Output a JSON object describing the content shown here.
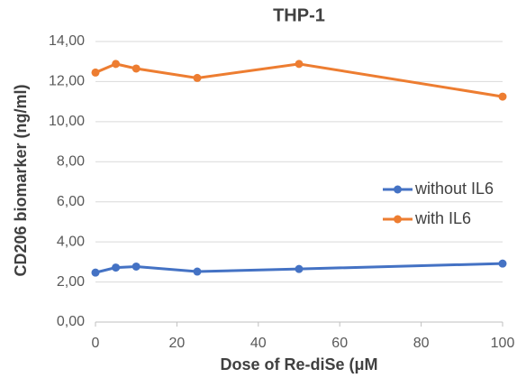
{
  "chart_data": {
    "type": "line",
    "title": "THP-1",
    "x_label": "Dose of Re-diSe (μM",
    "y_label": "CD206  biomarker (ng/ml)",
    "x": [
      0,
      5,
      10,
      25,
      50,
      100
    ],
    "series": [
      {
        "name": "without IL6",
        "color": "#4472c4",
        "values": [
          2.47,
          2.72,
          2.77,
          2.52,
          2.65,
          2.92
        ]
      },
      {
        "name": "with IL6",
        "color": "#ed7d31",
        "values": [
          12.45,
          12.88,
          12.65,
          12.18,
          12.88,
          11.25
        ]
      }
    ],
    "xlim": [
      0,
      100
    ],
    "xticks": [
      0,
      20,
      40,
      60,
      80,
      100
    ],
    "ylim": [
      0,
      14
    ],
    "yticks": [
      {
        "value": 0,
        "label": "0,00"
      },
      {
        "value": 2,
        "label": "2,00"
      },
      {
        "value": 4,
        "label": "4,00"
      },
      {
        "value": 6,
        "label": "6,00"
      },
      {
        "value": 8,
        "label": "8,00"
      },
      {
        "value": 10,
        "label": "10,00"
      },
      {
        "value": 12,
        "label": "12,00"
      },
      {
        "value": 14,
        "label": "14,00"
      }
    ],
    "grid": true,
    "legend": "right"
  }
}
